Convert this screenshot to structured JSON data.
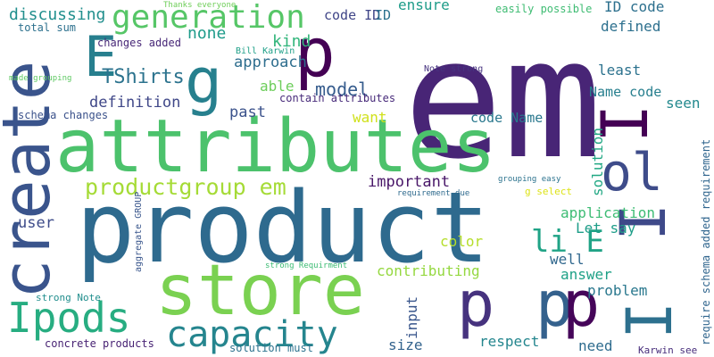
{
  "words": [
    {
      "text": "em",
      "color": "#482576"
    },
    {
      "text": "product",
      "color": "#2e6a8e"
    },
    {
      "text": "attributes",
      "color": "#4cc26c"
    },
    {
      "text": "store",
      "color": "#7ad151"
    },
    {
      "text": "create",
      "color": "#3a548c"
    },
    {
      "text": "p",
      "color": "#440154"
    },
    {
      "text": "p",
      "color": "#46327e"
    },
    {
      "text": "p",
      "color": "#34618d"
    },
    {
      "text": "p",
      "color": "#450559"
    },
    {
      "text": "I",
      "color": "#440154"
    },
    {
      "text": "I",
      "color": "#3e4989"
    },
    {
      "text": "I",
      "color": "#2d708e"
    },
    {
      "text": "g",
      "color": "#27808e"
    },
    {
      "text": "E",
      "color": "#277f8e"
    },
    {
      "text": "ol",
      "color": "#3e4c8a"
    },
    {
      "text": "Ipods",
      "color": "#27ad81"
    },
    {
      "text": "capacity",
      "color": "#25858e"
    },
    {
      "text": "generation",
      "color": "#56c667"
    },
    {
      "text": "li E",
      "color": "#20a386"
    },
    {
      "text": "productgroup em",
      "color": "#a5db36"
    },
    {
      "text": "TShirts",
      "color": "#2c738e"
    },
    {
      "text": "model",
      "color": "#365c8d"
    },
    {
      "text": "discussing",
      "color": "#218f8d"
    },
    {
      "text": "kind",
      "color": "#31b57b"
    },
    {
      "text": "none",
      "color": "#1e9b8a"
    },
    {
      "text": "approach",
      "color": "#2e6e8e"
    },
    {
      "text": "definition",
      "color": "#3f4788"
    },
    {
      "text": "past",
      "color": "#3b528b"
    },
    {
      "text": "able",
      "color": "#6ccd5a"
    },
    {
      "text": "want",
      "color": "#d0e11c"
    },
    {
      "text": "code Name",
      "color": "#2a788e"
    },
    {
      "text": "important",
      "color": "#481668"
    },
    {
      "text": "user",
      "color": "#3e4c8a"
    },
    {
      "text": "color",
      "color": "#b5de2b"
    },
    {
      "text": "contributing",
      "color": "#95d840"
    },
    {
      "text": "input",
      "color": "#39568c"
    },
    {
      "text": "size",
      "color": "#33638d"
    },
    {
      "text": "respect",
      "color": "#24868e"
    },
    {
      "text": "need",
      "color": "#2f6c8e"
    },
    {
      "text": "answer",
      "color": "#1fa187"
    },
    {
      "text": "problem",
      "color": "#2a788e"
    },
    {
      "text": "well",
      "color": "#31688e"
    },
    {
      "text": "Let say",
      "color": "#1f9e89"
    },
    {
      "text": "application",
      "color": "#3dbc74"
    },
    {
      "text": "solution",
      "color": "#22a884"
    },
    {
      "text": "least",
      "color": "#2c728e"
    },
    {
      "text": "seen",
      "color": "#23898e"
    },
    {
      "text": "Name code",
      "color": "#277f8e"
    },
    {
      "text": "defined",
      "color": "#2d708e"
    },
    {
      "text": "ID code",
      "color": "#2d708e"
    },
    {
      "text": "ensure",
      "color": "#1e9c89"
    },
    {
      "text": "code ID",
      "color": "#404688"
    },
    {
      "text": "easily possible",
      "color": "#3fbc73"
    },
    {
      "text": "Thanks everyone",
      "color": "#6ece58"
    },
    {
      "text": "total sum",
      "color": "#2d718e"
    },
    {
      "text": "changes added",
      "color": "#482878"
    },
    {
      "text": "Bill Karwin",
      "color": "#1fa088"
    },
    {
      "text": "made grouping",
      "color": "#5ec962"
    },
    {
      "text": "schema changes",
      "color": "#3b528b"
    },
    {
      "text": "contain attributes",
      "color": "#472a7a"
    },
    {
      "text": "Note strong",
      "color": "#46337f"
    },
    {
      "text": "grouping easy",
      "color": "#2c738e"
    },
    {
      "text": "requirement due",
      "color": "#2f6b8e"
    },
    {
      "text": "g select",
      "color": "#dde318"
    },
    {
      "text": "require schema added requirement",
      "color": "#31668e"
    },
    {
      "text": "aggregate GROUP",
      "color": "#39568c"
    },
    {
      "text": "strong Requirment",
      "color": "#3dbc74"
    },
    {
      "text": "strong Note",
      "color": "#218e8d"
    },
    {
      "text": "concrete products",
      "color": "#482374"
    },
    {
      "text": "solution must",
      "color": "#2c728e"
    },
    {
      "text": "Karwin see",
      "color": "#472d7b"
    },
    {
      "text": "ID",
      "color": "#2c728e"
    }
  ]
}
